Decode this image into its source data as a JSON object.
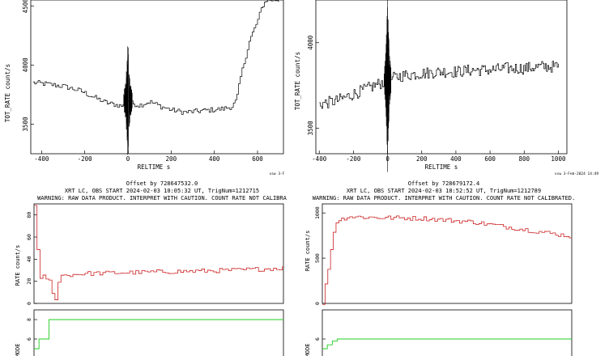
{
  "panels": {
    "top_left": {
      "ylabel": "TOT_RATE  count/s",
      "xlabel": "RELTIME  s",
      "footer": "vsw  3-F",
      "yticks": [
        3500,
        4000,
        4500
      ],
      "xticks": [
        -400,
        -200,
        0,
        200,
        400,
        600
      ]
    },
    "top_right": {
      "ylabel": "TOT_RATE  count/s",
      "xlabel": "RELTIME  s",
      "footer": "vsw  3-Feb-2024 14:49",
      "yticks": [
        3500,
        4000
      ],
      "xticks": [
        -400,
        -200,
        0,
        200,
        400,
        600,
        800,
        1000
      ]
    },
    "bottom_left": {
      "offset": "Offset by  728647532.0",
      "obs": "XRT LC, OBS START 2024-02-03 10:05:32 UT, TrigNum=1212715",
      "warning": "WARNING: RAW DATA PRODUCT. INTERPRET WITH CAUTION. COUNT RATE NOT CALIBRA",
      "rate_ylabel": "RATE  count/s",
      "mode_ylabel": "MODE",
      "rate_yticks": [
        0,
        20,
        40,
        60,
        80
      ],
      "mode_yticks": [
        6,
        8
      ]
    },
    "bottom_right": {
      "offset": "Offset by  728679172.4",
      "obs": "XRT LC, OBS START 2024-02-03 18:52:52 UT, TrigNum=1212789",
      "warning": "WARNING: RAW DATA PRODUCT. INTERPRET WITH CAUTION. COUNT RATE NOT CALIBRATED.",
      "rate_ylabel": "RATE  count/s",
      "mode_ylabel": "MODE",
      "rate_yticks": [
        0,
        500,
        1000
      ],
      "mode_yticks": [
        6
      ]
    }
  },
  "colors": {
    "axis": "#000000",
    "rate": "#cc2222",
    "mode": "#22cc22",
    "curve": "#000000"
  },
  "chart_data": [
    {
      "type": "line",
      "ylabel": "TOT_RATE  count/s",
      "xlabel": "RELTIME  s",
      "xlim": [
        -450,
        720
      ],
      "ylim": [
        3250,
        4550
      ],
      "series": [
        {
          "x": [
            -440,
            -380,
            -300,
            -220,
            -150,
            -100,
            -50,
            -10,
            0,
            10,
            50,
            100,
            150,
            200,
            260,
            320,
            380,
            440,
            480,
            500,
            520,
            560,
            600,
            620,
            640,
            680,
            700
          ],
          "values": [
            3850,
            3840,
            3820,
            3780,
            3720,
            3680,
            3660,
            3650,
            3700,
            3680,
            3660,
            3690,
            3650,
            3620,
            3600,
            3610,
            3620,
            3630,
            3650,
            3700,
            3900,
            4200,
            4380,
            4500,
            4550,
            4550,
            4550
          ]
        }
      ]
    },
    {
      "type": "line",
      "ylabel": "TOT_RATE  count/s",
      "xlabel": "RELTIME  s",
      "xlim": [
        -420,
        1050
      ],
      "ylim": [
        3350,
        4250
      ],
      "series": [
        {
          "x": [
            -400,
            -350,
            -300,
            -250,
            -200,
            -150,
            -100,
            -50,
            0,
            50,
            100,
            200,
            300,
            400,
            500,
            600,
            700,
            800,
            900,
            1000
          ],
          "values": [
            3640,
            3650,
            3660,
            3680,
            3700,
            3720,
            3740,
            3760,
            3780,
            3800,
            3810,
            3820,
            3830,
            3830,
            3840,
            3840,
            3850,
            3850,
            3860,
            3860
          ]
        }
      ]
    },
    {
      "type": "line",
      "ylabel": "RATE  count/s",
      "ylim": [
        0,
        90
      ],
      "series": [
        {
          "name": "RATE",
          "x": [
            0,
            2,
            4,
            6,
            8,
            10,
            20,
            40,
            60,
            80,
            100
          ],
          "values": [
            90,
            20,
            25,
            20,
            0,
            25,
            27,
            28,
            29,
            30,
            32
          ]
        }
      ]
    },
    {
      "type": "line",
      "ylabel": "RATE  count/s",
      "ylim": [
        0,
        1100
      ],
      "series": [
        {
          "name": "RATE",
          "x": [
            0,
            5,
            10,
            20,
            40,
            60,
            80,
            100
          ],
          "values": [
            0,
            900,
            960,
            950,
            940,
            900,
            820,
            740
          ]
        }
      ]
    },
    {
      "type": "line",
      "ylabel": "MODE",
      "series": [
        {
          "name": "MODE",
          "x": [
            0,
            2,
            4,
            6,
            100
          ],
          "values": [
            5,
            6,
            6,
            8,
            8
          ]
        }
      ]
    },
    {
      "type": "line",
      "ylabel": "MODE",
      "series": [
        {
          "name": "MODE",
          "x": [
            0,
            5,
            100
          ],
          "values": [
            5,
            6,
            6
          ]
        }
      ]
    }
  ]
}
